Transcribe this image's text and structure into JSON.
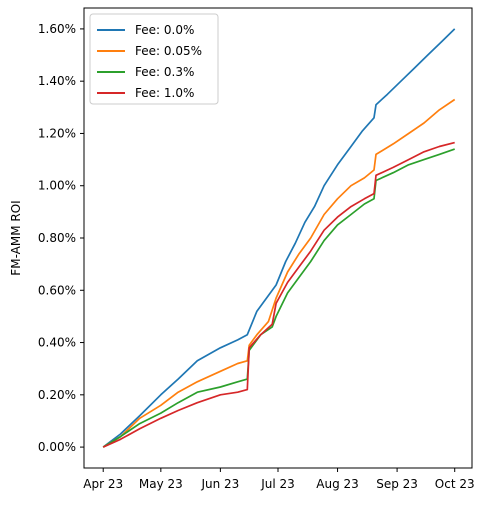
{
  "chart_data": {
    "type": "line",
    "title": "",
    "xlabel": "",
    "ylabel": "FM-AMM ROI",
    "x_ticks": [
      "Apr 23",
      "May 23",
      "Jun 23",
      "Jul 23",
      "Aug 23",
      "Sep 23",
      "Oct 23"
    ],
    "y_ticks": [
      "0.00%",
      "0.20%",
      "0.40%",
      "0.60%",
      "0.80%",
      "1.00%",
      "1.20%",
      "1.40%",
      "1.60%"
    ],
    "y_tick_values": [
      0.0,
      0.2,
      0.4,
      0.6,
      0.8,
      1.0,
      1.2,
      1.4,
      1.6
    ],
    "ylim": [
      -0.08,
      1.68
    ],
    "xlim": [
      "2023-03-22",
      "2023-10-10"
    ],
    "grid": false,
    "legend": "top-left",
    "series": [
      {
        "name": "Fee: 0.0%",
        "color": "#1f77b4",
        "points": [
          [
            "2023-04-01",
            0.0
          ],
          [
            "2023-04-10",
            0.05
          ],
          [
            "2023-04-20",
            0.12
          ],
          [
            "2023-05-01",
            0.2
          ],
          [
            "2023-05-10",
            0.26
          ],
          [
            "2023-05-20",
            0.33
          ],
          [
            "2023-06-01",
            0.38
          ],
          [
            "2023-06-10",
            0.41
          ],
          [
            "2023-06-15",
            0.43
          ],
          [
            "2023-06-20",
            0.52
          ],
          [
            "2023-06-25",
            0.57
          ],
          [
            "2023-06-30",
            0.62
          ],
          [
            "2023-07-05",
            0.71
          ],
          [
            "2023-07-10",
            0.78
          ],
          [
            "2023-07-15",
            0.86
          ],
          [
            "2023-07-20",
            0.92
          ],
          [
            "2023-07-25",
            1.0
          ],
          [
            "2023-08-01",
            1.08
          ],
          [
            "2023-08-08",
            1.15
          ],
          [
            "2023-08-14",
            1.21
          ],
          [
            "2023-08-20",
            1.26
          ],
          [
            "2023-08-21",
            1.31
          ],
          [
            "2023-08-27",
            1.35
          ],
          [
            "2023-09-03",
            1.4
          ],
          [
            "2023-09-10",
            1.45
          ],
          [
            "2023-09-17",
            1.5
          ],
          [
            "2023-09-24",
            1.55
          ],
          [
            "2023-10-01",
            1.6
          ]
        ]
      },
      {
        "name": "Fee: 0.05%",
        "color": "#ff7f0e",
        "points": [
          [
            "2023-04-01",
            0.0
          ],
          [
            "2023-04-10",
            0.04
          ],
          [
            "2023-04-20",
            0.11
          ],
          [
            "2023-05-01",
            0.16
          ],
          [
            "2023-05-10",
            0.21
          ],
          [
            "2023-05-20",
            0.25
          ],
          [
            "2023-06-01",
            0.29
          ],
          [
            "2023-06-10",
            0.32
          ],
          [
            "2023-06-15",
            0.33
          ],
          [
            "2023-06-16",
            0.39
          ],
          [
            "2023-06-20",
            0.43
          ],
          [
            "2023-06-26",
            0.48
          ],
          [
            "2023-06-30",
            0.57
          ],
          [
            "2023-07-06",
            0.67
          ],
          [
            "2023-07-12",
            0.74
          ],
          [
            "2023-07-18",
            0.8
          ],
          [
            "2023-07-25",
            0.89
          ],
          [
            "2023-08-01",
            0.95
          ],
          [
            "2023-08-08",
            1.0
          ],
          [
            "2023-08-15",
            1.03
          ],
          [
            "2023-08-20",
            1.06
          ],
          [
            "2023-08-21",
            1.12
          ],
          [
            "2023-08-30",
            1.16
          ],
          [
            "2023-09-07",
            1.2
          ],
          [
            "2023-09-15",
            1.24
          ],
          [
            "2023-09-23",
            1.29
          ],
          [
            "2023-10-01",
            1.33
          ]
        ]
      },
      {
        "name": "Fee: 0.3%",
        "color": "#2ca02c",
        "points": [
          [
            "2023-04-01",
            0.0
          ],
          [
            "2023-04-10",
            0.04
          ],
          [
            "2023-04-20",
            0.09
          ],
          [
            "2023-05-01",
            0.13
          ],
          [
            "2023-05-10",
            0.17
          ],
          [
            "2023-05-20",
            0.21
          ],
          [
            "2023-06-01",
            0.23
          ],
          [
            "2023-06-10",
            0.25
          ],
          [
            "2023-06-15",
            0.26
          ],
          [
            "2023-06-16",
            0.37
          ],
          [
            "2023-06-22",
            0.43
          ],
          [
            "2023-06-28",
            0.46
          ],
          [
            "2023-06-30",
            0.5
          ],
          [
            "2023-07-06",
            0.59
          ],
          [
            "2023-07-12",
            0.65
          ],
          [
            "2023-07-18",
            0.71
          ],
          [
            "2023-07-25",
            0.79
          ],
          [
            "2023-08-01",
            0.85
          ],
          [
            "2023-08-08",
            0.89
          ],
          [
            "2023-08-15",
            0.93
          ],
          [
            "2023-08-20",
            0.95
          ],
          [
            "2023-08-21",
            1.02
          ],
          [
            "2023-08-30",
            1.05
          ],
          [
            "2023-09-07",
            1.08
          ],
          [
            "2023-09-15",
            1.1
          ],
          [
            "2023-09-23",
            1.12
          ],
          [
            "2023-10-01",
            1.14
          ]
        ]
      },
      {
        "name": "Fee: 1.0%",
        "color": "#d62728",
        "points": [
          [
            "2023-04-01",
            0.0
          ],
          [
            "2023-04-10",
            0.03
          ],
          [
            "2023-04-20",
            0.07
          ],
          [
            "2023-05-01",
            0.11
          ],
          [
            "2023-05-10",
            0.14
          ],
          [
            "2023-05-20",
            0.17
          ],
          [
            "2023-06-01",
            0.2
          ],
          [
            "2023-06-10",
            0.21
          ],
          [
            "2023-06-15",
            0.22
          ],
          [
            "2023-06-16",
            0.38
          ],
          [
            "2023-06-22",
            0.43
          ],
          [
            "2023-06-28",
            0.47
          ],
          [
            "2023-06-30",
            0.55
          ],
          [
            "2023-07-06",
            0.63
          ],
          [
            "2023-07-12",
            0.69
          ],
          [
            "2023-07-18",
            0.75
          ],
          [
            "2023-07-25",
            0.83
          ],
          [
            "2023-08-01",
            0.88
          ],
          [
            "2023-08-08",
            0.92
          ],
          [
            "2023-08-15",
            0.95
          ],
          [
            "2023-08-20",
            0.97
          ],
          [
            "2023-08-21",
            1.04
          ],
          [
            "2023-08-30",
            1.07
          ],
          [
            "2023-09-07",
            1.1
          ],
          [
            "2023-09-15",
            1.13
          ],
          [
            "2023-09-23",
            1.15
          ],
          [
            "2023-10-01",
            1.165
          ]
        ]
      }
    ]
  }
}
